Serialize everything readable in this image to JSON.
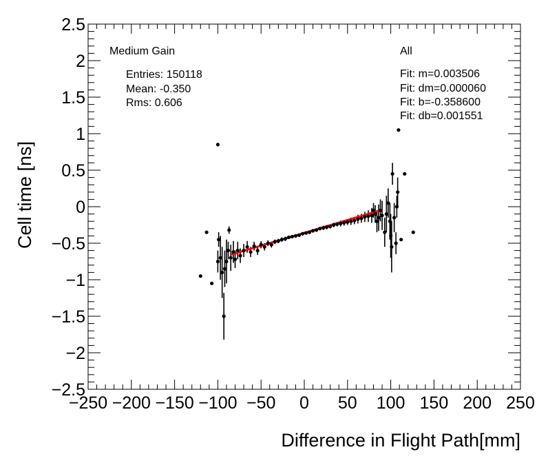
{
  "chart_data": {
    "type": "scatter",
    "xlabel": "Difference in Flight Path[mm]",
    "ylabel": "Cell time [ns]",
    "xlim": [
      -250,
      250
    ],
    "ylim": [
      -2.5,
      2.5
    ],
    "x_ticks": [
      -250,
      -200,
      -150,
      -100,
      -50,
      0,
      50,
      100,
      150,
      200,
      250
    ],
    "x_tick_labels": [
      "−250",
      "−200",
      "−150",
      "−100",
      "−50",
      "0",
      "50",
      "100",
      "150",
      "200",
      "250"
    ],
    "y_ticks": [
      -2.5,
      -2,
      -1.5,
      -1,
      -0.5,
      0,
      0.5,
      1,
      1.5,
      2,
      2.5
    ],
    "y_tick_labels": [
      "−2.5",
      "−2",
      "−1.5",
      "−1",
      "−0.5",
      "0",
      "0.5",
      "1",
      "1.5",
      "2",
      "2.5"
    ],
    "grid": false,
    "gain_label": "Medium Gain",
    "category_label": "All",
    "stats": {
      "entries": "Entries: 150118",
      "mean": "Mean: -0.350",
      "rms": "Rms: 0.606"
    },
    "fit_text": {
      "m": "Fit: m=0.003506",
      "dm": "Fit: dm=0.000060",
      "b": "Fit: b=-0.358600",
      "db": "Fit: db=0.001551"
    },
    "fit": {
      "m": 0.003506,
      "b": -0.3586,
      "x_range": [
        -85,
        90
      ],
      "color": "#ff0000"
    },
    "marker_color": "#000000",
    "points": [
      {
        "x": -120,
        "y": -0.95,
        "err": 0
      },
      {
        "x": -113,
        "y": -0.35,
        "err": 0
      },
      {
        "x": -107,
        "y": -1.05,
        "err": 0
      },
      {
        "x": -100,
        "y": 0.85,
        "err": 0
      },
      {
        "x": -100,
        "y": -0.75,
        "err": 0.15
      },
      {
        "x": -99,
        "y": -0.45,
        "err": 0.1
      },
      {
        "x": -97,
        "y": -0.7,
        "err": 0.3
      },
      {
        "x": -95,
        "y": -0.9,
        "err": 0.35
      },
      {
        "x": -93,
        "y": -1.5,
        "err": 0.32
      },
      {
        "x": -92,
        "y": -0.85,
        "err": 0.25
      },
      {
        "x": -90,
        "y": -0.75,
        "err": 0.3
      },
      {
        "x": -88,
        "y": -0.6,
        "err": 0.12
      },
      {
        "x": -87,
        "y": -0.32,
        "err": 0.05
      },
      {
        "x": -85,
        "y": -0.7,
        "err": 0.18
      },
      {
        "x": -82,
        "y": -0.62,
        "err": 0.15
      },
      {
        "x": -80,
        "y": -0.72,
        "err": 0.12
      },
      {
        "x": -77,
        "y": -0.6,
        "err": 0.12
      },
      {
        "x": -74,
        "y": -0.67,
        "err": 0.1
      },
      {
        "x": -70,
        "y": -0.6,
        "err": 0.09
      },
      {
        "x": -66,
        "y": -0.55,
        "err": 0.08
      },
      {
        "x": -62,
        "y": -0.62,
        "err": 0.07
      },
      {
        "x": -58,
        "y": -0.54,
        "err": 0.06
      },
      {
        "x": -54,
        "y": -0.6,
        "err": 0.06
      },
      {
        "x": -50,
        "y": -0.52,
        "err": 0.05
      },
      {
        "x": -46,
        "y": -0.55,
        "err": 0.05
      },
      {
        "x": -42,
        "y": -0.5,
        "err": 0.04
      },
      {
        "x": -38,
        "y": -0.52,
        "err": 0.04
      },
      {
        "x": -34,
        "y": -0.48,
        "err": 0.03
      },
      {
        "x": -30,
        "y": -0.47,
        "err": 0.03
      },
      {
        "x": -26,
        "y": -0.45,
        "err": 0.03
      },
      {
        "x": -22,
        "y": -0.44,
        "err": 0.03
      },
      {
        "x": -18,
        "y": -0.42,
        "err": 0.02
      },
      {
        "x": -14,
        "y": -0.41,
        "err": 0.02
      },
      {
        "x": -10,
        "y": -0.4,
        "err": 0.02
      },
      {
        "x": -6,
        "y": -0.39,
        "err": 0.02
      },
      {
        "x": -2,
        "y": -0.37,
        "err": 0.02
      },
      {
        "x": 2,
        "y": -0.36,
        "err": 0.02
      },
      {
        "x": 6,
        "y": -0.35,
        "err": 0.02
      },
      {
        "x": 10,
        "y": -0.33,
        "err": 0.02
      },
      {
        "x": 14,
        "y": -0.32,
        "err": 0.02
      },
      {
        "x": 18,
        "y": -0.3,
        "err": 0.02
      },
      {
        "x": 22,
        "y": -0.29,
        "err": 0.03
      },
      {
        "x": 26,
        "y": -0.28,
        "err": 0.03
      },
      {
        "x": 30,
        "y": -0.27,
        "err": 0.03
      },
      {
        "x": 34,
        "y": -0.25,
        "err": 0.03
      },
      {
        "x": 38,
        "y": -0.24,
        "err": 0.03
      },
      {
        "x": 42,
        "y": -0.23,
        "err": 0.04
      },
      {
        "x": 46,
        "y": -0.22,
        "err": 0.04
      },
      {
        "x": 50,
        "y": -0.21,
        "err": 0.04
      },
      {
        "x": 54,
        "y": -0.2,
        "err": 0.05
      },
      {
        "x": 58,
        "y": -0.19,
        "err": 0.05
      },
      {
        "x": 62,
        "y": -0.17,
        "err": 0.06
      },
      {
        "x": 66,
        "y": -0.16,
        "err": 0.06
      },
      {
        "x": 70,
        "y": -0.14,
        "err": 0.07
      },
      {
        "x": 74,
        "y": -0.13,
        "err": 0.08
      },
      {
        "x": 78,
        "y": -0.12,
        "err": 0.1
      },
      {
        "x": 80,
        "y": -0.05,
        "err": 0.1
      },
      {
        "x": 82,
        "y": -0.1,
        "err": 0.12
      },
      {
        "x": 84,
        "y": -0.2,
        "err": 0.15
      },
      {
        "x": 86,
        "y": -0.15,
        "err": 0.18
      },
      {
        "x": 88,
        "y": -0.05,
        "err": 0.15
      },
      {
        "x": 90,
        "y": -0.12,
        "err": 0.2
      },
      {
        "x": 93,
        "y": -0.35,
        "err": 0.2
      },
      {
        "x": 95,
        "y": -0.1,
        "err": 0.25
      },
      {
        "x": 97,
        "y": 0.05,
        "err": 0.2
      },
      {
        "x": 99,
        "y": -0.2,
        "err": 0.25
      },
      {
        "x": 100,
        "y": -0.4,
        "err": 0.3
      },
      {
        "x": 101,
        "y": -0.55,
        "err": 0.35
      },
      {
        "x": 102,
        "y": 0.45,
        "err": 0.15
      },
      {
        "x": 104,
        "y": -0.15,
        "err": 0.2
      },
      {
        "x": 106,
        "y": -0.5,
        "err": 0.15
      },
      {
        "x": 107,
        "y": 0.0,
        "err": 0.15
      },
      {
        "x": 108,
        "y": 0.2,
        "err": 0.2
      },
      {
        "x": 109,
        "y": 1.05,
        "err": 0
      },
      {
        "x": 112,
        "y": -0.45,
        "err": 0
      },
      {
        "x": 116,
        "y": 0.45,
        "err": 0
      },
      {
        "x": 126,
        "y": -0.35,
        "err": 0
      }
    ]
  }
}
